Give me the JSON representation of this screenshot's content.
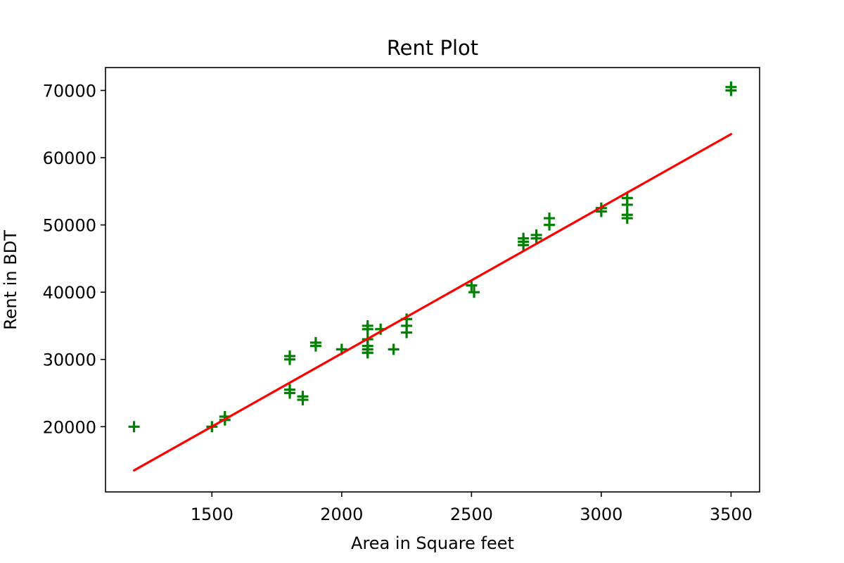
{
  "chart_data": {
    "type": "scatter",
    "title": "Rent Plot",
    "xlabel": "Area in Square feet",
    "ylabel": "Rent in BDT",
    "xlim": [
      1090,
      3610
    ],
    "ylim": [
      10300,
      73400
    ],
    "xticks": [
      1500,
      2000,
      2500,
      3000,
      3500
    ],
    "yticks": [
      20000,
      30000,
      40000,
      50000,
      60000,
      70000
    ],
    "grid": false,
    "colors": {
      "scatter": "#008000",
      "fit_line": "#ff0000",
      "axes": "#000000"
    },
    "series": [
      {
        "kind": "scatter",
        "marker": "+",
        "points": [
          [
            1200,
            20000
          ],
          [
            1500,
            20000
          ],
          [
            1550,
            21000
          ],
          [
            1550,
            21500
          ],
          [
            1800,
            30000
          ],
          [
            1800,
            30500
          ],
          [
            1800,
            25000
          ],
          [
            1800,
            25500
          ],
          [
            1850,
            24000
          ],
          [
            1850,
            24500
          ],
          [
            1900,
            32000
          ],
          [
            1900,
            32500
          ],
          [
            2000,
            31500
          ],
          [
            2100,
            35000
          ],
          [
            2100,
            34500
          ],
          [
            2100,
            33000
          ],
          [
            2100,
            32000
          ],
          [
            2100,
            31500
          ],
          [
            2100,
            31000
          ],
          [
            2100,
            31000
          ],
          [
            2150,
            34500
          ],
          [
            2200,
            31500
          ],
          [
            2250,
            36000
          ],
          [
            2250,
            35000
          ],
          [
            2250,
            34000
          ],
          [
            2500,
            41000
          ],
          [
            2510,
            40000
          ],
          [
            2700,
            48000
          ],
          [
            2700,
            47500
          ],
          [
            2700,
            47000
          ],
          [
            2750,
            48500
          ],
          [
            2750,
            48000
          ],
          [
            2800,
            51000
          ],
          [
            2800,
            50000
          ],
          [
            3000,
            52500
          ],
          [
            3000,
            52000
          ],
          [
            3100,
            54000
          ],
          [
            3100,
            53000
          ],
          [
            3100,
            51500
          ],
          [
            3100,
            51000
          ],
          [
            3500,
            70500
          ],
          [
            3500,
            70000
          ]
        ]
      },
      {
        "kind": "line",
        "points": [
          [
            1200,
            13500
          ],
          [
            3500,
            63500
          ]
        ]
      }
    ]
  }
}
